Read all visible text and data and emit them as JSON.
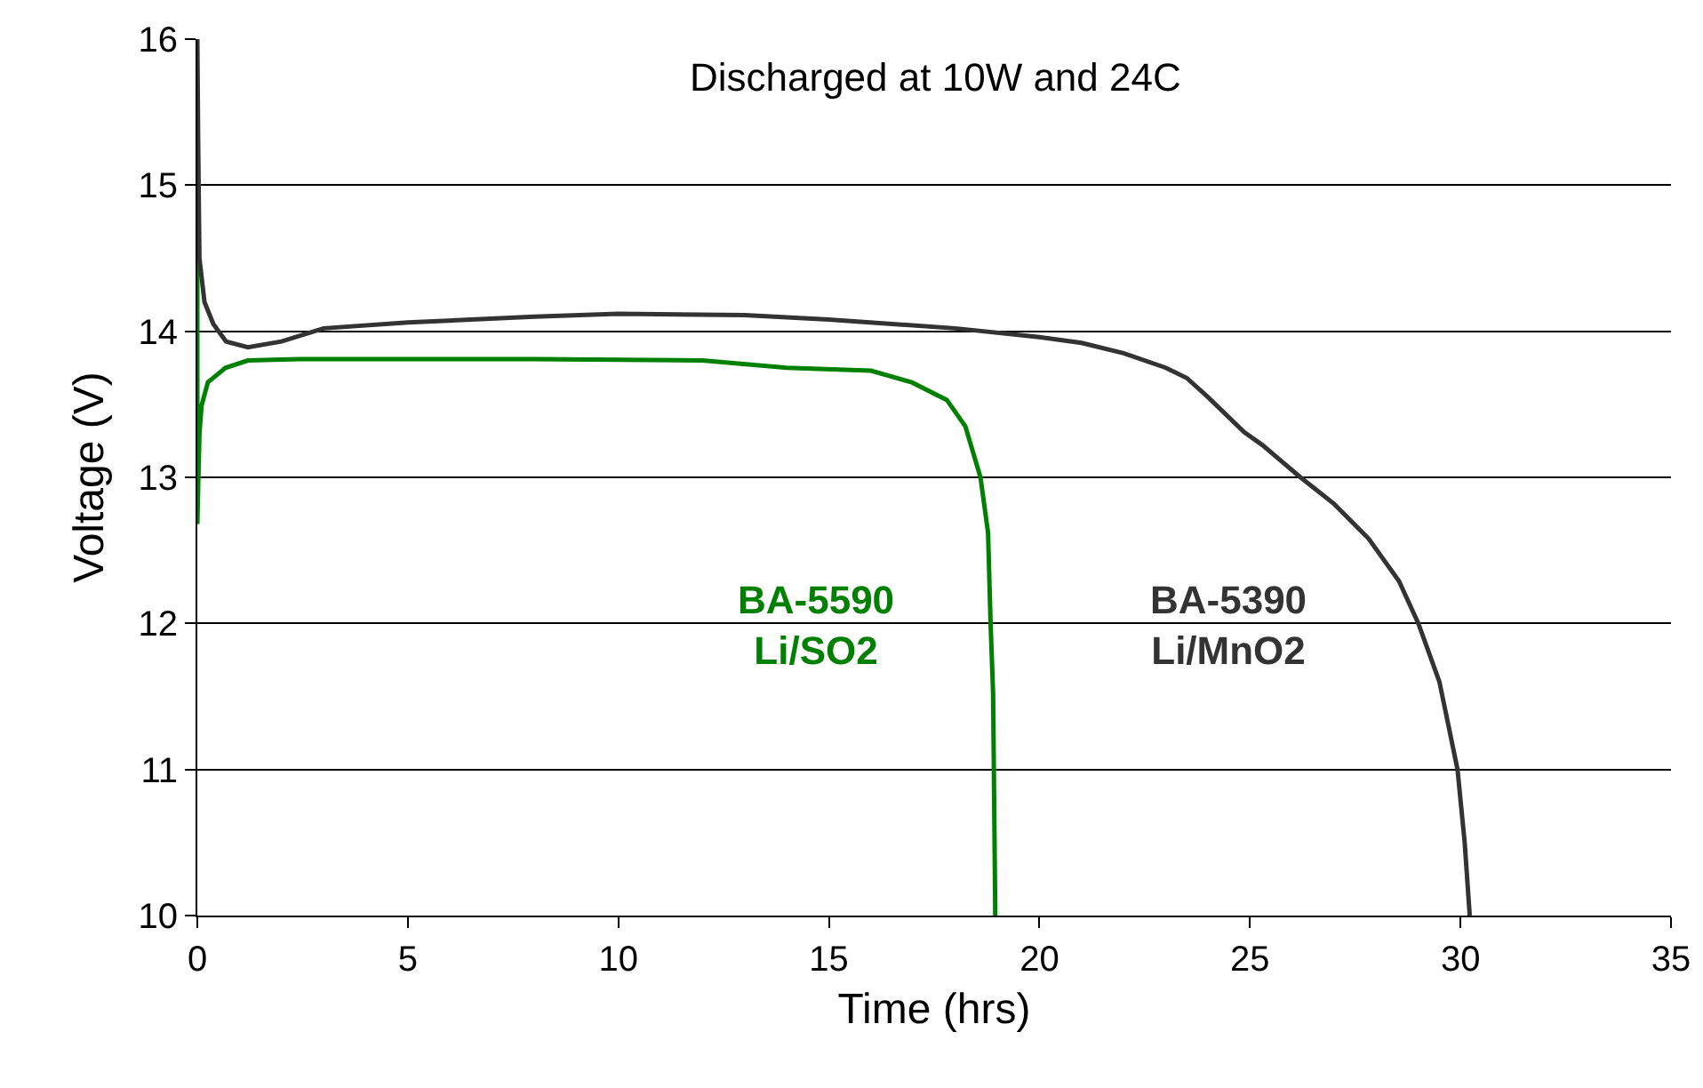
{
  "chart_data": {
    "type": "line",
    "xlabel": "Time (hrs)",
    "ylabel": "Voltage (V)",
    "annotations": [
      "Discharged at 10W and 24C"
    ],
    "xlim": [
      0,
      35
    ],
    "xticks": [
      0,
      5,
      10,
      15,
      20,
      25,
      30,
      35
    ],
    "ylim": [
      10,
      16
    ],
    "yticks": [
      10,
      11,
      12,
      13,
      14,
      15,
      16
    ],
    "grid": "y",
    "legend": false,
    "marker": "none",
    "line_style": "solid",
    "series": [
      {
        "name": "BA-5590\nLi/SO2",
        "color": "#008000",
        "x": [
          0,
          0,
          0.05,
          0.1,
          0.25,
          0.67,
          1.2,
          2.4,
          5,
          8,
          12,
          14,
          16,
          16.97,
          17.8,
          18.24,
          18.6,
          18.78,
          18.84,
          18.9,
          18.95,
          18.95
        ],
        "values": [
          15.05,
          12.68,
          13.3,
          13.49,
          13.65,
          13.75,
          13.8,
          13.81,
          13.81,
          13.81,
          13.8,
          13.75,
          13.73,
          13.65,
          13.53,
          13.35,
          13.0,
          12.62,
          12.0,
          11.52,
          10.06,
          10
        ]
      },
      {
        "name": "BA-5390\nLi/MnO2",
        "color": "#333333",
        "x": [
          0,
          0.02,
          0.05,
          0.17,
          0.38,
          0.68,
          1.2,
          2,
          3,
          5,
          8,
          10,
          13,
          15,
          18,
          20,
          21,
          22,
          23,
          23.5,
          24,
          24.86,
          25.3,
          26.2,
          26.99,
          27.82,
          28.54,
          29,
          29.5,
          29.93,
          30.1,
          30.22
        ],
        "values": [
          16,
          15.3,
          14.5,
          14.2,
          14.05,
          13.93,
          13.89,
          13.93,
          14.02,
          14.06,
          14.1,
          14.12,
          14.11,
          14.08,
          14.02,
          13.96,
          13.92,
          13.85,
          13.75,
          13.68,
          13.55,
          13.31,
          13.22,
          13.0,
          12.82,
          12.58,
          12.29,
          12.0,
          11.6,
          11.0,
          10.5,
          10
        ]
      }
    ]
  }
}
